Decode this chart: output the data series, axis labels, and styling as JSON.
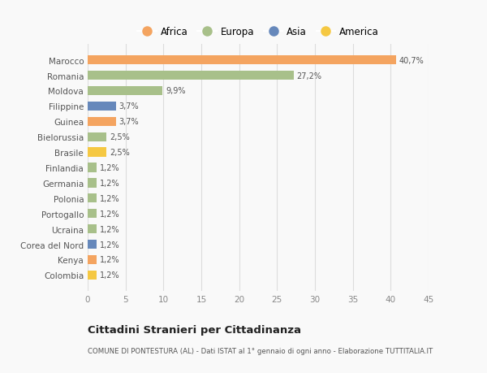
{
  "categories": [
    "Colombia",
    "Kenya",
    "Corea del Nord",
    "Ucraina",
    "Portogallo",
    "Polonia",
    "Germania",
    "Finlandia",
    "Brasile",
    "Bielorussia",
    "Guinea",
    "Filippine",
    "Moldova",
    "Romania",
    "Marocco"
  ],
  "values": [
    1.2,
    1.2,
    1.2,
    1.2,
    1.2,
    1.2,
    1.2,
    1.2,
    2.5,
    2.5,
    3.7,
    3.7,
    9.9,
    27.2,
    40.7
  ],
  "labels": [
    "1,2%",
    "1,2%",
    "1,2%",
    "1,2%",
    "1,2%",
    "1,2%",
    "1,2%",
    "1,2%",
    "2,5%",
    "2,5%",
    "3,7%",
    "3,7%",
    "9,9%",
    "27,2%",
    "40,7%"
  ],
  "bar_colors": [
    "#F5C842",
    "#F4A460",
    "#6688BB",
    "#A8C08A",
    "#A8C08A",
    "#A8C08A",
    "#A8C08A",
    "#A8C08A",
    "#F5C842",
    "#A8C08A",
    "#F4A460",
    "#6688BB",
    "#A8C08A",
    "#A8C08A",
    "#F4A460"
  ],
  "legend_labels": [
    "Africa",
    "Europa",
    "Asia",
    "America"
  ],
  "legend_colors": [
    "#F4A460",
    "#A8C08A",
    "#6688BB",
    "#F5C842"
  ],
  "xlim": [
    0,
    45
  ],
  "xticks": [
    0,
    5,
    10,
    15,
    20,
    25,
    30,
    35,
    40,
    45
  ],
  "title": "Cittadini Stranieri per Cittadinanza",
  "subtitle": "COMUNE DI PONTESTURA (AL) - Dati ISTAT al 1° gennaio di ogni anno - Elaborazione TUTTITALIA.IT",
  "background_color": "#f9f9f9",
  "grid_color": "#dddddd",
  "bar_height": 0.6
}
